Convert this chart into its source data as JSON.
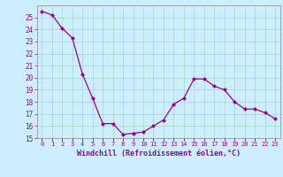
{
  "x": [
    0,
    1,
    2,
    3,
    4,
    5,
    6,
    7,
    8,
    9,
    10,
    11,
    12,
    13,
    14,
    15,
    16,
    17,
    18,
    19,
    20,
    21,
    22,
    23
  ],
  "y": [
    25.5,
    25.2,
    24.1,
    23.3,
    20.3,
    18.3,
    16.2,
    16.2,
    15.3,
    15.4,
    15.5,
    16.0,
    16.5,
    17.8,
    18.3,
    19.9,
    19.9,
    19.3,
    19.0,
    18.0,
    17.4,
    17.4,
    17.1,
    16.6
  ],
  "xlim": [
    -0.5,
    23.5
  ],
  "ylim": [
    15,
    26
  ],
  "yticks": [
    15,
    16,
    17,
    18,
    19,
    20,
    21,
    22,
    23,
    24,
    25
  ],
  "xtick_labels": [
    "0",
    "1",
    "2",
    "3",
    "4",
    "5",
    "6",
    "7",
    "8",
    "9",
    "10",
    "11",
    "12",
    "13",
    "14",
    "15",
    "16",
    "17",
    "18",
    "19",
    "20",
    "21",
    "22",
    "23"
  ],
  "xlabel": "Windchill (Refroidissement éolien,°C)",
  "line_color": "#990099",
  "marker": "D",
  "marker_size": 2.5,
  "bg_color": "#cceeff",
  "grid_color": "#aaddcc",
  "tick_color": "#990099",
  "xlabel_color": "#990099"
}
